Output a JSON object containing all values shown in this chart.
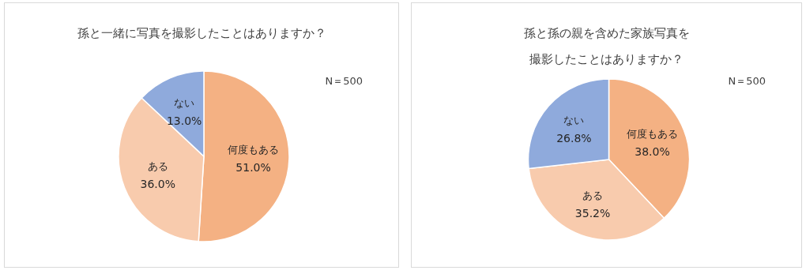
{
  "chart_data": [
    {
      "type": "pie",
      "title": "孫と一緒に写真を撮影したことはありますか？",
      "categories": [
        "何度もある",
        "ある",
        "ない"
      ],
      "values": [
        51.0,
        36.0,
        13.0
      ],
      "value_labels": [
        "51.0%",
        "36.0%",
        "13.0%"
      ],
      "colors": [
        "#f4b183",
        "#f8cbad",
        "#8faadc"
      ],
      "annotations": [
        "N＝500"
      ]
    },
    {
      "type": "pie",
      "title": "孫と孫の親を含めた家族写真を撮影したことはありますか？",
      "categories": [
        "何度もある",
        "ある",
        "ない"
      ],
      "values": [
        38.0,
        35.2,
        26.8
      ],
      "value_labels": [
        "38.0%",
        "35.2%",
        "26.8%"
      ],
      "colors": [
        "#f4b183",
        "#f8cbad",
        "#8faadc"
      ],
      "annotations": [
        "N＝500"
      ]
    }
  ]
}
